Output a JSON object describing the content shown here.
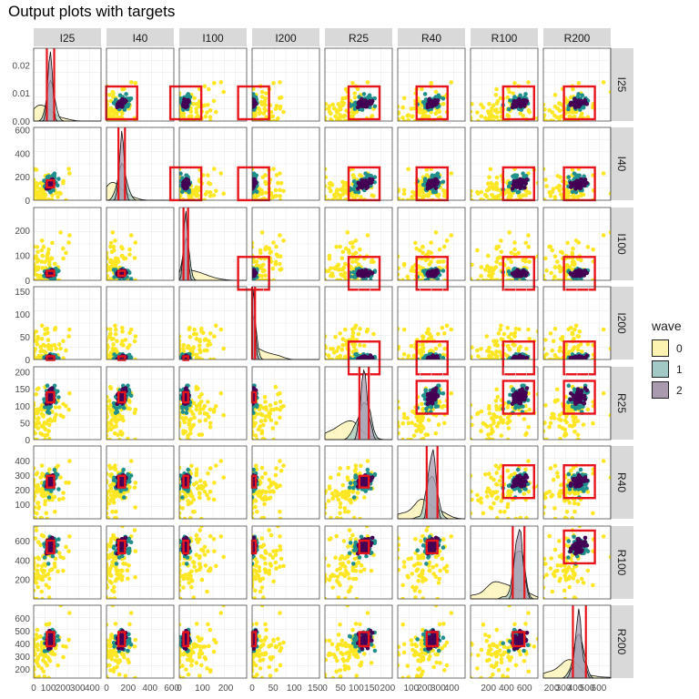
{
  "title": "Output plots with targets",
  "chart_data": {
    "type": "scatter-matrix",
    "title": "Output plots with targets",
    "variables": [
      "I25",
      "I40",
      "I100",
      "I200",
      "R25",
      "R40",
      "R100",
      "R200"
    ],
    "ranges": [
      [
        0,
        460
      ],
      [
        0,
        620
      ],
      [
        0,
        290
      ],
      [
        0,
        160
      ],
      [
        0,
        215
      ],
      [
        0,
        500
      ],
      [
        0,
        750
      ],
      [
        130,
        700
      ]
    ],
    "density_ylim_row1": [
      0,
      0.026
    ],
    "tick_labels": {
      "top_left_y": [
        "0.00",
        "0.01",
        "0.02"
      ],
      "I40_y": [
        "0",
        "200",
        "400",
        "600"
      ],
      "I100_y": [
        "0",
        "100",
        "200"
      ],
      "I200_y": [
        "0",
        "50",
        "100",
        "150"
      ],
      "R25_y": [
        "0",
        "50",
        "100",
        "150",
        "200"
      ],
      "R40_y": [
        "100",
        "200",
        "300",
        "400"
      ],
      "R100_y": [
        "200",
        "400",
        "600"
      ],
      "R200_y": [
        "200",
        "300",
        "400",
        "500",
        "600"
      ],
      "I25_x": [
        "0",
        "100",
        "200",
        "300",
        "400"
      ],
      "I40_x": [
        "0",
        "200",
        "400",
        "600"
      ],
      "I100_x": [
        "0",
        "100",
        "200"
      ],
      "I200_x": [
        "0",
        "50",
        "100",
        "150"
      ],
      "R25_x": [
        "0",
        "50",
        "100",
        "150",
        "200"
      ],
      "R40_x": [
        "100",
        "200",
        "300",
        "400"
      ],
      "R100_x": [
        "200",
        "400",
        "600"
      ],
      "R200_x": [
        "200",
        "300",
        "400",
        "500",
        "600"
      ]
    },
    "targets": [
      {
        "name": "I25",
        "low": 90,
        "high": 140
      },
      {
        "name": "I40",
        "low": 110,
        "high": 170
      },
      {
        "name": "I100",
        "low": 18,
        "high": 38
      },
      {
        "name": "I200",
        "low": 0,
        "high": 7
      },
      {
        "name": "R25",
        "low": 110,
        "high": 140
      },
      {
        "name": "R40",
        "low": 215,
        "high": 295
      },
      {
        "name": "R100",
        "low": 470,
        "high": 600
      },
      {
        "name": "R200",
        "low": 380,
        "high": 490
      }
    ],
    "waves": [
      {
        "name": "0",
        "color": "#fde725"
      },
      {
        "name": "1",
        "color": "#21908c"
      },
      {
        "name": "2",
        "color": "#440154"
      }
    ],
    "legend_title": "wave",
    "legend_position": "right"
  }
}
